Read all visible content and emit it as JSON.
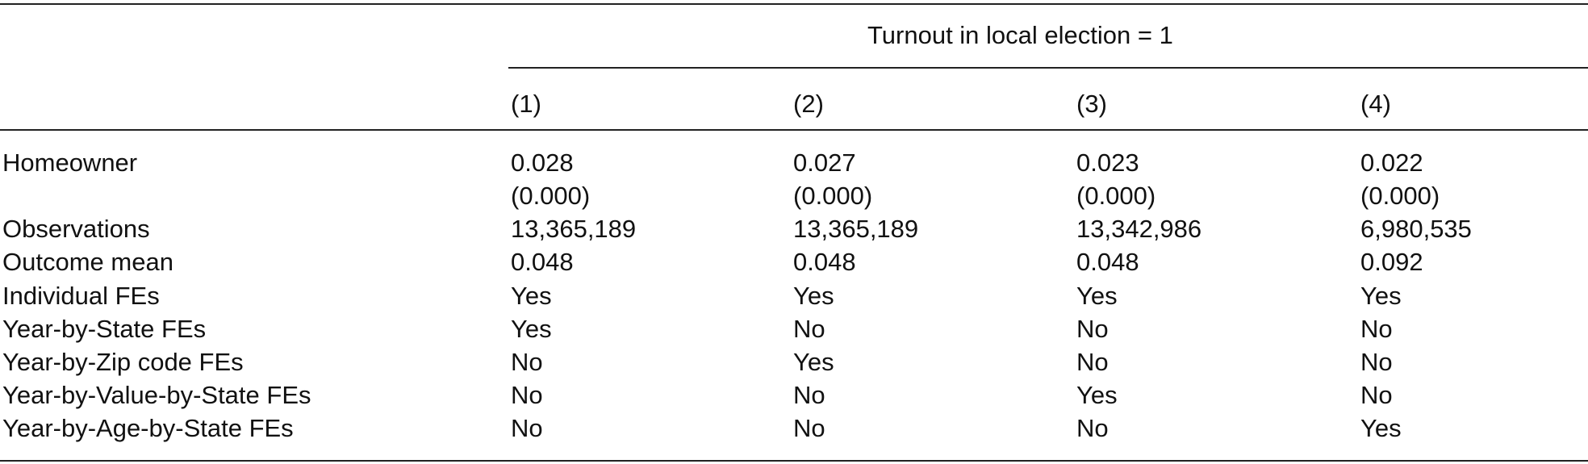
{
  "table": {
    "spanner": "Turnout in local election = 1",
    "columns": [
      "(1)",
      "(2)",
      "(3)",
      "(4)"
    ],
    "rows": [
      {
        "label": "Homeowner",
        "values": [
          "0.028",
          "0.027",
          "0.023",
          "0.022"
        ],
        "se": [
          "(0.000)",
          "(0.000)",
          "(0.000)",
          "(0.000)"
        ]
      },
      {
        "label": "Observations",
        "values": [
          "13,365,189",
          "13,365,189",
          "13,342,986",
          "6,980,535"
        ]
      },
      {
        "label": "Outcome mean",
        "values": [
          "0.048",
          "0.048",
          "0.048",
          "0.092"
        ]
      },
      {
        "label": "Individual FEs",
        "values": [
          "Yes",
          "Yes",
          "Yes",
          "Yes"
        ]
      },
      {
        "label": "Year-by-State FEs",
        "values": [
          "Yes",
          "No",
          "No",
          "No"
        ]
      },
      {
        "label": "Year-by-Zip code FEs",
        "values": [
          "No",
          "Yes",
          "No",
          "No"
        ]
      },
      {
        "label": "Year-by-Value-by-State FEs",
        "values": [
          "No",
          "No",
          "Yes",
          "No"
        ]
      },
      {
        "label": "Year-by-Age-by-State FEs",
        "values": [
          "No",
          "No",
          "No",
          "Yes"
        ]
      }
    ]
  }
}
